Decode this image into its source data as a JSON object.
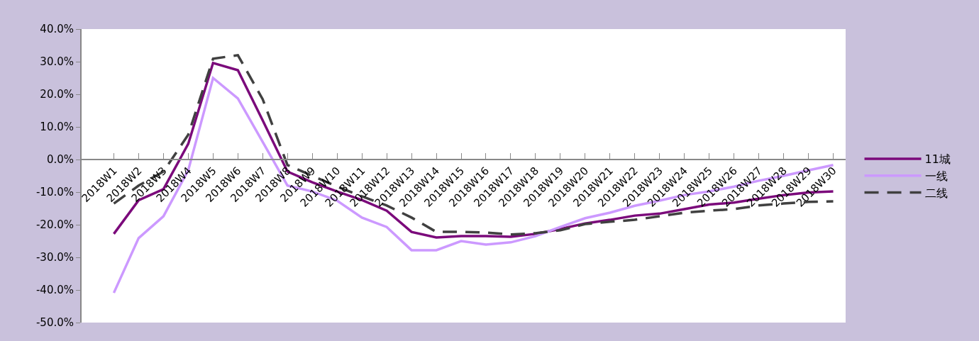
{
  "chart_data": {
    "type": "line",
    "categories": [
      "2018W1",
      "2018W2",
      "2018W3",
      "2018W4",
      "2018W5",
      "2018W6",
      "2018W7",
      "2018W8",
      "2018W9",
      "2018W10",
      "2018W11",
      "2018W12",
      "2018W13",
      "2018W14",
      "2018W15",
      "2018W16",
      "2018W17",
      "2018W18",
      "2018W19",
      "2018W20",
      "2018W21",
      "2018W22",
      "2018W23",
      "2018W24",
      "2018W25",
      "2018W26",
      "2018W27",
      "2018W28",
      "2018W29",
      "2018W30"
    ],
    "series": [
      {
        "name": "11城",
        "color": "#7b0a7b",
        "line_style": "solid",
        "values": [
          -22.8,
          -12.5,
          -9.1,
          4.8,
          29.6,
          27.4,
          12,
          -3.7,
          -7,
          -9.8,
          -12.4,
          -15.7,
          -22.2,
          -23.9,
          -23.5,
          -23.5,
          -23.7,
          -22.8,
          -21.3,
          -19.6,
          -18.5,
          -17.2,
          -16.6,
          -15.2,
          -13.8,
          -13.2,
          -12,
          -10.9,
          -10.1,
          -9.8
        ]
      },
      {
        "name": "一线",
        "color": "#cc99ff",
        "line_style": "solid",
        "values": [
          -40.9,
          -24.1,
          -17.4,
          -3.3,
          25,
          18.7,
          5.4,
          -8,
          -9.8,
          -12.6,
          -17.8,
          -20.7,
          -27.8,
          -27.8,
          -25,
          -26.1,
          -25.4,
          -23.5,
          -20.7,
          -18,
          -16.3,
          -14.2,
          -12.6,
          -10.9,
          -9.8,
          -8.3,
          -6.5,
          -5,
          -3.3,
          -1.7
        ]
      },
      {
        "name": "二线",
        "color": "#404040",
        "line_style": "dashed",
        "values": [
          -13.5,
          -8,
          -3.7,
          7.6,
          30.9,
          32,
          18.5,
          -1.7,
          -5,
          -8.3,
          -11.3,
          -14.1,
          -17.8,
          -22.2,
          -22.2,
          -22.4,
          -23,
          -22.6,
          -21.7,
          -19.8,
          -19.1,
          -18.5,
          -17.4,
          -16.3,
          -15.7,
          -15.2,
          -14.1,
          -13.5,
          -13,
          -12.8
        ]
      }
    ],
    "ylim": [
      -50,
      40
    ],
    "yticks": [
      {
        "value": 40,
        "label": "40.0%"
      },
      {
        "value": 30,
        "label": "30.0%"
      },
      {
        "value": 20,
        "label": "20.0%"
      },
      {
        "value": 10,
        "label": "10.0%"
      },
      {
        "value": 0,
        "label": "0.0%"
      },
      {
        "value": -10,
        "label": "-10.0%"
      },
      {
        "value": -20,
        "label": "-20.0%"
      },
      {
        "value": -30,
        "label": "-30.0%"
      },
      {
        "value": -40,
        "label": "-40.0%"
      },
      {
        "value": -50,
        "label": "-50.0%"
      }
    ],
    "grid": false,
    "legend": "right",
    "marker": "none"
  }
}
